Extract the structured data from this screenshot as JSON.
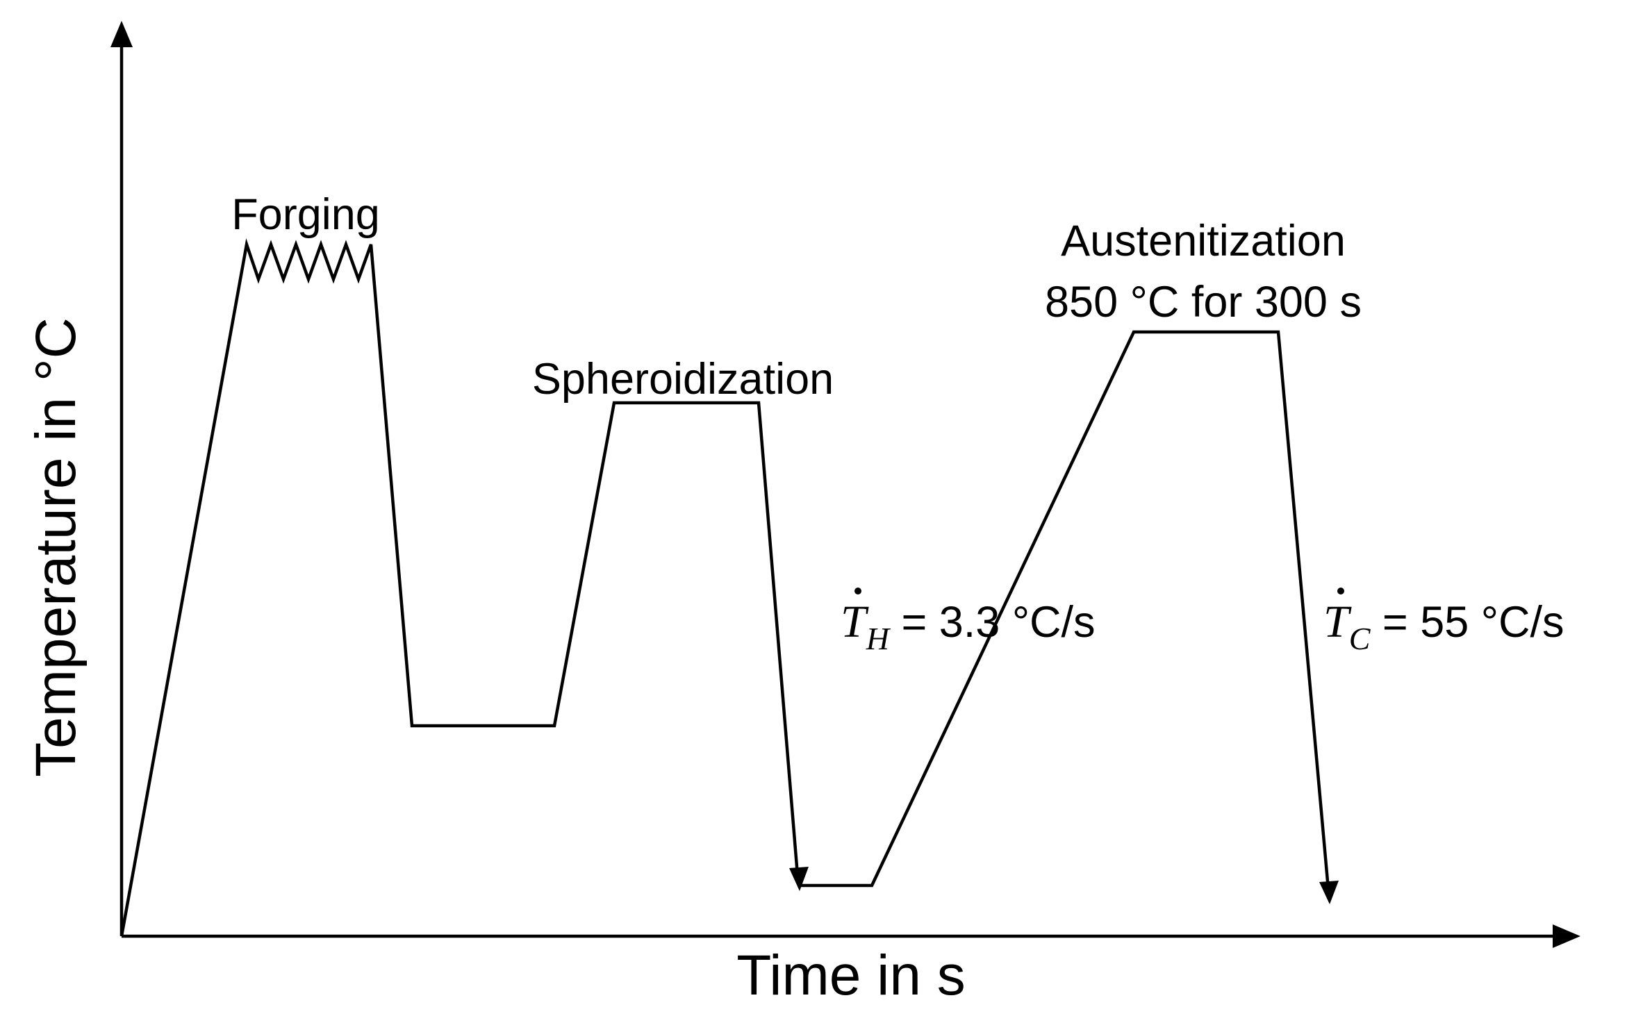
{
  "axes": {
    "x_title": "Time in s",
    "y_title": "Temperature in °C"
  },
  "stages": {
    "forging": "Forging",
    "spheroidization": "Spheroidization",
    "austenitization_line1": "Austenitization",
    "austenitization_line2": "850 °C for 300 s"
  },
  "rates": {
    "heating": {
      "symbol": "T",
      "subscript": "H",
      "operator": " = ",
      "value": "3.3 °C/s"
    },
    "cooling": {
      "symbol": "T",
      "subscript": "C",
      "operator": " = ",
      "value": "55 °C/s"
    }
  },
  "colors": {
    "line": "#000000",
    "background": "#ffffff"
  }
}
